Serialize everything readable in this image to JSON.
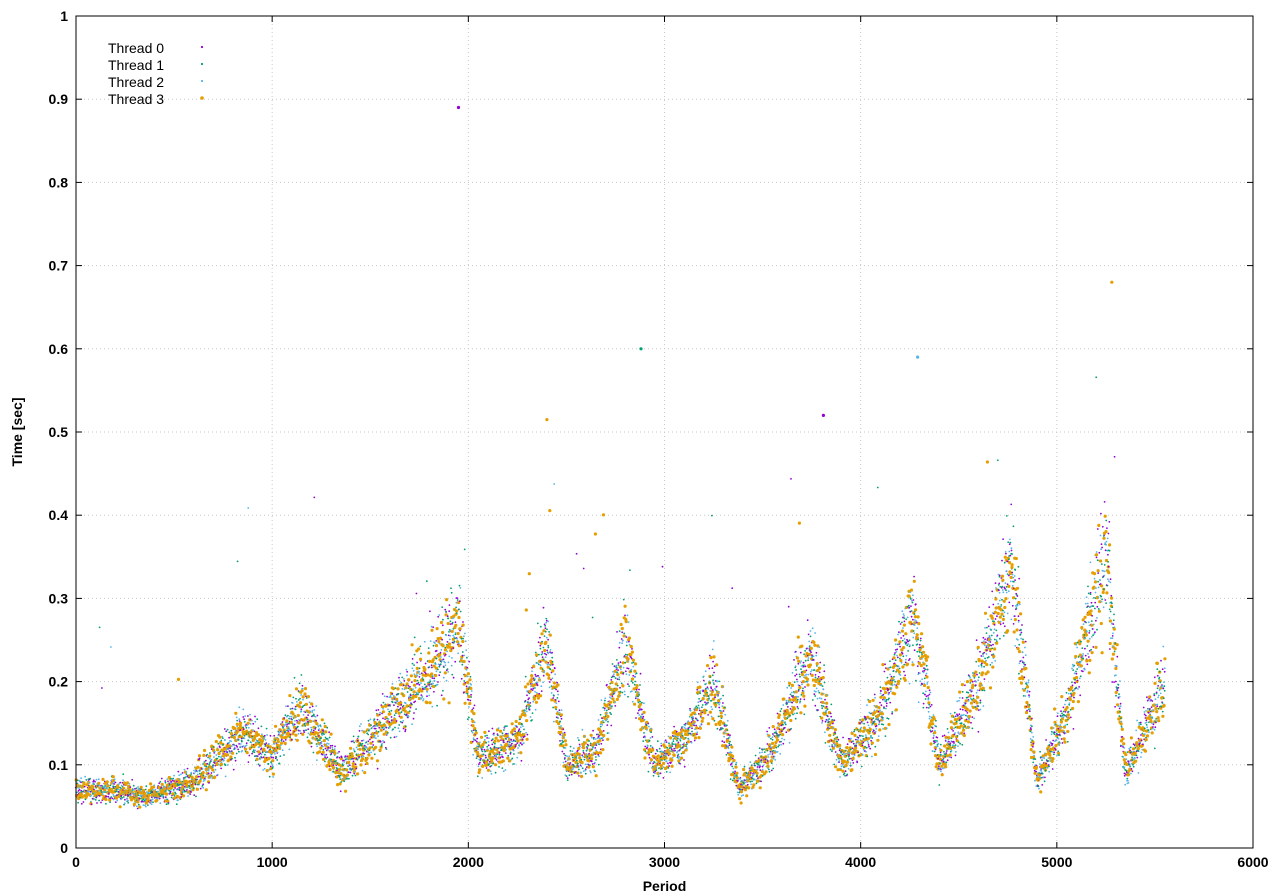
{
  "chart_data": {
    "type": "scatter",
    "title": "",
    "xlabel": "Period",
    "ylabel": "Time [sec]",
    "xlim": [
      0,
      6000
    ],
    "ylim": [
      0,
      1
    ],
    "grid": true,
    "legend_position": "top-left",
    "x_ticks": [
      "0",
      "1000",
      "2000",
      "3000",
      "4000",
      "5000",
      "6000"
    ],
    "y_ticks": [
      "0",
      "0.1",
      "0.2",
      "0.3",
      "0.4",
      "0.5",
      "0.6",
      "0.7",
      "0.8",
      "0.9",
      "1"
    ],
    "x_range_of_data": [
      0,
      5550
    ],
    "outlier_points": [
      {
        "x": 1950,
        "y": 0.89
      },
      {
        "x": 2880,
        "y": 0.6
      },
      {
        "x": 4290,
        "y": 0.59
      },
      {
        "x": 5280,
        "y": 0.68
      },
      {
        "x": 3810,
        "y": 0.52
      }
    ],
    "envelope": [
      {
        "x": 0,
        "y": 0.07
      },
      {
        "x": 200,
        "y": 0.07
      },
      {
        "x": 350,
        "y": 0.06
      },
      {
        "x": 600,
        "y": 0.08
      },
      {
        "x": 850,
        "y": 0.14
      },
      {
        "x": 1000,
        "y": 0.11
      },
      {
        "x": 1150,
        "y": 0.17
      },
      {
        "x": 1350,
        "y": 0.09
      },
      {
        "x": 1600,
        "y": 0.16
      },
      {
        "x": 1800,
        "y": 0.21
      },
      {
        "x": 1950,
        "y": 0.27
      },
      {
        "x": 2050,
        "y": 0.11
      },
      {
        "x": 2250,
        "y": 0.13
      },
      {
        "x": 2400,
        "y": 0.25
      },
      {
        "x": 2500,
        "y": 0.1
      },
      {
        "x": 2650,
        "y": 0.12
      },
      {
        "x": 2800,
        "y": 0.24
      },
      {
        "x": 2950,
        "y": 0.1
      },
      {
        "x": 3100,
        "y": 0.13
      },
      {
        "x": 3250,
        "y": 0.2
      },
      {
        "x": 3380,
        "y": 0.07
      },
      {
        "x": 3550,
        "y": 0.12
      },
      {
        "x": 3750,
        "y": 0.23
      },
      {
        "x": 3900,
        "y": 0.1
      },
      {
        "x": 4100,
        "y": 0.16
      },
      {
        "x": 4270,
        "y": 0.28
      },
      {
        "x": 4400,
        "y": 0.1
      },
      {
        "x": 4600,
        "y": 0.2
      },
      {
        "x": 4770,
        "y": 0.34
      },
      {
        "x": 4900,
        "y": 0.08
      },
      {
        "x": 5050,
        "y": 0.16
      },
      {
        "x": 5250,
        "y": 0.35
      },
      {
        "x": 5350,
        "y": 0.09
      },
      {
        "x": 5550,
        "y": 0.2
      }
    ],
    "series": [
      {
        "name": "Thread 0",
        "color": "#9400d3",
        "marker": "dot"
      },
      {
        "name": "Thread 1",
        "color": "#009e73",
        "marker": "dot"
      },
      {
        "name": "Thread 2",
        "color": "#56b4e9",
        "marker": "dot"
      },
      {
        "name": "Thread 3",
        "color": "#e69f00",
        "marker": "dot"
      }
    ]
  }
}
